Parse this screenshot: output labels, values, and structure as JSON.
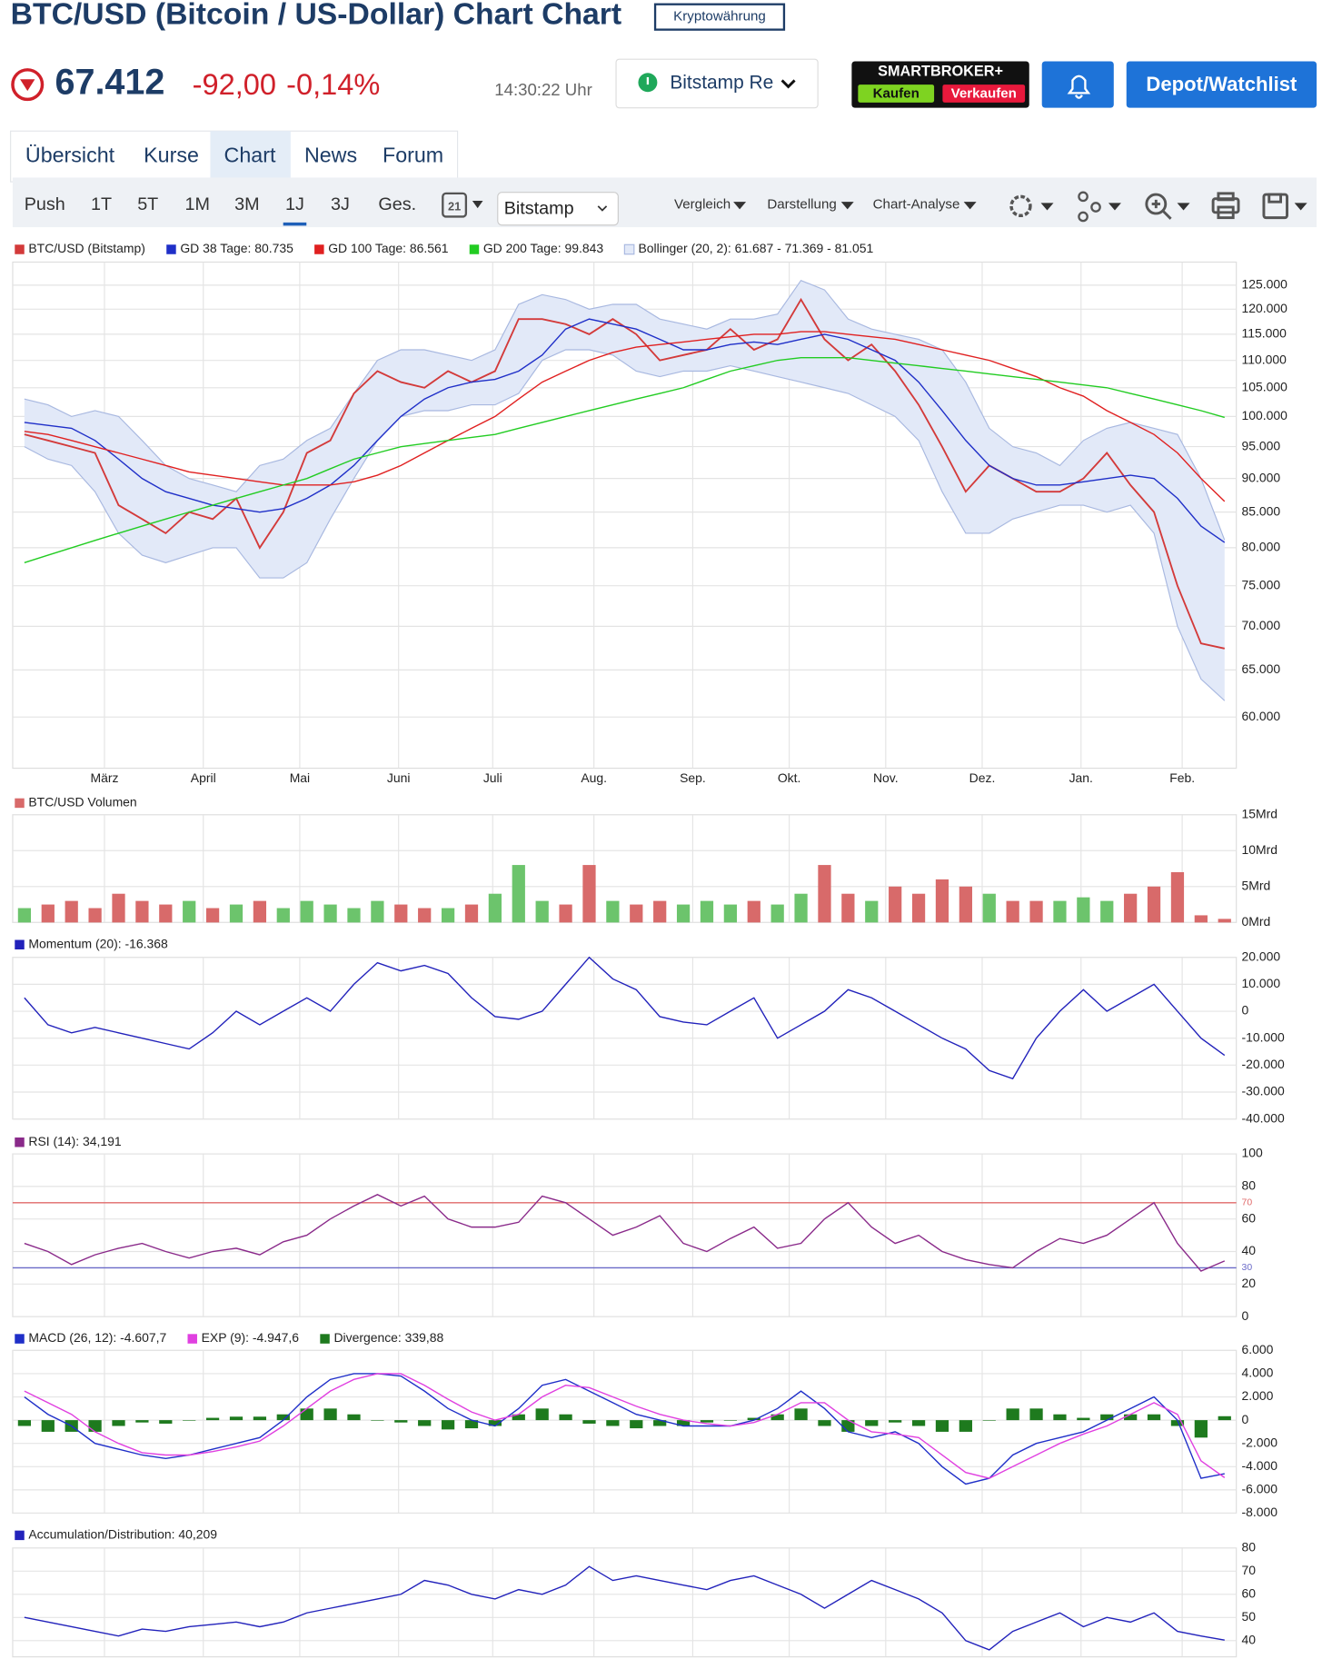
{
  "header": {
    "title": "BTC/USD (Bitcoin / US-Dollar) Chart Chart",
    "badge": "Kryptowährung",
    "price": "67.412",
    "change": "-92,00",
    "change_percent": "-0,14%",
    "time": "14:30:22 Uhr",
    "exchange": "Bitstamp Re",
    "broker": "SMARTBROKER+",
    "buy": "Kaufen",
    "sell": "Verkaufen",
    "watchlist": "Depot/Watchlist"
  },
  "tabs": [
    "Übersicht",
    "Kurse",
    "Chart",
    "News",
    "Forum"
  ],
  "toolbar": {
    "ranges": [
      "Push",
      "1T",
      "5T",
      "1M",
      "3M",
      "1J",
      "3J",
      "Ges."
    ],
    "calendar": "21",
    "exchange": "Bitstamp",
    "menus": [
      "Vergleich",
      "Darstellung",
      "Chart-Analyse"
    ]
  },
  "chart_data": [
    {
      "type": "line",
      "log_scale": true,
      "grid": true,
      "xlim": [
        0,
        52
      ],
      "ylim": [
        55000,
        130000
      ],
      "xticks": [
        {
          "value": 3.9,
          "label": "März"
        },
        {
          "value": 8.1,
          "label": "April"
        },
        {
          "value": 12.2,
          "label": "Mai"
        },
        {
          "value": 16.4,
          "label": "Juni"
        },
        {
          "value": 20.4,
          "label": "Juli"
        },
        {
          "value": 24.7,
          "label": "Aug."
        },
        {
          "value": 28.9,
          "label": "Sep."
        },
        {
          "value": 33.0,
          "label": "Okt."
        },
        {
          "value": 37.1,
          "label": "Nov."
        },
        {
          "value": 41.2,
          "label": "Dez."
        },
        {
          "value": 45.4,
          "label": "Jan."
        },
        {
          "value": 49.7,
          "label": "Feb."
        }
      ],
      "yticks": [
        {
          "value": 60000,
          "label": "60.000"
        },
        {
          "value": 65000,
          "label": "65.000"
        },
        {
          "value": 70000,
          "label": "70.000"
        },
        {
          "value": 75000,
          "label": "75.000"
        },
        {
          "value": 80000,
          "label": "80.000"
        },
        {
          "value": 85000,
          "label": "85.000"
        },
        {
          "value": 90000,
          "label": "90.000"
        },
        {
          "value": 95000,
          "label": "95.000"
        },
        {
          "value": 100000,
          "label": "100.000"
        },
        {
          "value": 105000,
          "label": "105.000"
        },
        {
          "value": 110000,
          "label": "110.000"
        },
        {
          "value": 115000,
          "label": "115.000"
        },
        {
          "value": 120000,
          "label": "120.000"
        },
        {
          "value": 125000,
          "label": "125.000"
        }
      ],
      "series": [
        {
          "name": "BTC/USD (Bitstamp)",
          "color": "#d33a3a",
          "style": "line",
          "values": [
            97000,
            96000,
            95000,
            94000,
            86000,
            84000,
            82000,
            85000,
            84000,
            87000,
            80000,
            85000,
            94000,
            96000,
            104000,
            108000,
            106000,
            105000,
            108000,
            106000,
            108000,
            118000,
            118000,
            117000,
            115000,
            118000,
            115000,
            110000,
            111000,
            112000,
            116000,
            112000,
            114000,
            122000,
            114000,
            110000,
            113000,
            108000,
            102000,
            95000,
            88000,
            92000,
            90000,
            88000,
            88000,
            90000,
            94000,
            89000,
            85000,
            75000,
            68000,
            67412
          ]
        },
        {
          "name": "GD 38 Tage: 80.735",
          "color": "#1f2fc8",
          "style": "line",
          "values": [
            99000,
            98500,
            98000,
            96000,
            93000,
            90000,
            88000,
            87000,
            86000,
            85500,
            85000,
            85500,
            87000,
            89000,
            92000,
            96000,
            100000,
            103000,
            105000,
            106000,
            106500,
            108000,
            111000,
            116000,
            118000,
            117000,
            116000,
            114000,
            112000,
            112000,
            113000,
            113500,
            113000,
            114000,
            115000,
            114000,
            112000,
            110000,
            106000,
            101000,
            96000,
            92000,
            90000,
            89000,
            89000,
            89500,
            90000,
            90500,
            90000,
            87000,
            83000,
            80735
          ]
        },
        {
          "name": "GD 100 Tage: 86.561",
          "color": "#e02020",
          "style": "line",
          "values": [
            97500,
            97000,
            96000,
            95000,
            94000,
            93000,
            92000,
            91000,
            90500,
            90000,
            89500,
            89000,
            89000,
            89000,
            89500,
            90500,
            92000,
            94000,
            96000,
            98000,
            100000,
            103000,
            106000,
            108000,
            110000,
            111500,
            112500,
            113000,
            113500,
            114000,
            114500,
            115000,
            115000,
            115500,
            115500,
            115000,
            114500,
            114000,
            113000,
            112000,
            111000,
            110000,
            108500,
            107000,
            105000,
            103500,
            101000,
            99000,
            97000,
            94000,
            90000,
            86561
          ]
        },
        {
          "name": "GD 200 Tage: 99.843",
          "color": "#22cc22",
          "style": "line",
          "values": [
            78000,
            79000,
            80000,
            81000,
            82000,
            83000,
            84000,
            85000,
            86000,
            87000,
            88000,
            89000,
            90000,
            91500,
            93000,
            94000,
            95000,
            95500,
            96000,
            96500,
            97000,
            98000,
            99000,
            100000,
            101000,
            102000,
            103000,
            104000,
            105000,
            106500,
            108000,
            109000,
            110000,
            110500,
            110500,
            110500,
            110000,
            109500,
            109000,
            108500,
            108000,
            107500,
            107000,
            106500,
            106000,
            105500,
            105000,
            104000,
            103000,
            102000,
            101000,
            99843
          ]
        },
        {
          "name": "Bollinger (20, 2): 61.687 - 71.369 - 81.051",
          "color": "#a8b8e0",
          "fill": "#e2e9f8",
          "style": "band",
          "upper": [
            103000,
            102000,
            100000,
            101000,
            100000,
            96000,
            92000,
            90000,
            89000,
            88000,
            92000,
            93000,
            96000,
            98000,
            104000,
            110000,
            112000,
            112000,
            111000,
            110000,
            112000,
            121000,
            123000,
            122000,
            120000,
            121000,
            121000,
            118000,
            117000,
            116000,
            118000,
            118000,
            119000,
            126000,
            124000,
            118000,
            116000,
            115000,
            114000,
            112000,
            106000,
            98000,
            95000,
            94000,
            92000,
            96000,
            98000,
            99000,
            98000,
            97000,
            90000,
            81051
          ],
          "lower": [
            95000,
            93000,
            92000,
            88000,
            82000,
            79000,
            78000,
            79000,
            80000,
            80000,
            76000,
            76000,
            78000,
            84000,
            90000,
            96000,
            100000,
            101000,
            101000,
            102000,
            102000,
            104000,
            110000,
            112000,
            112000,
            111000,
            108000,
            107000,
            108000,
            108000,
            109000,
            108000,
            107000,
            106000,
            105000,
            104000,
            102000,
            100000,
            96000,
            88000,
            82000,
            82000,
            84000,
            85000,
            86000,
            86000,
            85000,
            86000,
            82000,
            70000,
            64000,
            61687
          ]
        }
      ]
    },
    {
      "type": "bar",
      "grid": true,
      "ylim": [
        0,
        15
      ],
      "yticks": [
        {
          "value": 0,
          "label": "0Mrd"
        },
        {
          "value": 5,
          "label": "5Mrd"
        },
        {
          "value": 10,
          "label": "10Mrd"
        },
        {
          "value": 15,
          "label": "15Mrd"
        }
      ],
      "series": [
        {
          "name": "BTC/USD Volumen",
          "color": "#d86a6a",
          "up_color": "#6cc46c",
          "style": "bar",
          "values": [
            2,
            2.5,
            3,
            2,
            4,
            3,
            2.5,
            3,
            2,
            2.5,
            3,
            2,
            3,
            2.5,
            2,
            3,
            2.5,
            2,
            2,
            2.5,
            4,
            8,
            3,
            2.5,
            8,
            3,
            2.5,
            3,
            2.5,
            3,
            2.5,
            3,
            2.5,
            4,
            8,
            4,
            3,
            5,
            4,
            6,
            5,
            4,
            3,
            3,
            3,
            3.5,
            3,
            4,
            5,
            7,
            1,
            0.5
          ]
        }
      ]
    },
    {
      "type": "line",
      "grid": true,
      "ylim": [
        -40000,
        20000
      ],
      "yticks": [
        {
          "value": -40000,
          "label": "-40.000"
        },
        {
          "value": -30000,
          "label": "-30.000"
        },
        {
          "value": -20000,
          "label": "-20.000"
        },
        {
          "value": -10000,
          "label": "-10.000"
        },
        0,
        {
          "value": 10000,
          "label": "10.000"
        },
        {
          "value": 20000,
          "label": "20.000"
        }
      ],
      "series": [
        {
          "name": "Momentum (20): -16.368",
          "color": "#2222bb",
          "style": "line",
          "values": [
            5000,
            -5000,
            -8000,
            -6000,
            -8000,
            -10000,
            -12000,
            -14000,
            -8000,
            0,
            -5000,
            0,
            5000,
            0,
            10000,
            18000,
            15000,
            17000,
            14000,
            5000,
            -2000,
            -3000,
            0,
            10000,
            20000,
            12000,
            8000,
            -2000,
            -4000,
            -5000,
            0,
            5000,
            -10000,
            -5000,
            0,
            8000,
            5000,
            0,
            -5000,
            -10000,
            -14000,
            -22000,
            -25000,
            -10000,
            0,
            8000,
            0,
            5000,
            10000,
            0,
            -10000,
            -16368
          ]
        }
      ]
    },
    {
      "type": "line",
      "grid": true,
      "ylim": [
        0,
        100
      ],
      "yticks": [
        0,
        20,
        40,
        60,
        80,
        100
      ],
      "levels": [
        70,
        30
      ],
      "level_colors": [
        "#e06a6a",
        "#6a6ac8"
      ],
      "series": [
        {
          "name": "RSI (14): 34,191",
          "color": "#8a2a8a",
          "style": "line",
          "values": [
            45,
            40,
            32,
            38,
            42,
            45,
            40,
            36,
            40,
            42,
            38,
            46,
            50,
            60,
            68,
            75,
            68,
            74,
            60,
            55,
            55,
            58,
            74,
            70,
            60,
            50,
            55,
            62,
            45,
            40,
            48,
            55,
            42,
            45,
            60,
            70,
            55,
            45,
            50,
            40,
            35,
            32,
            30,
            40,
            48,
            45,
            50,
            60,
            70,
            45,
            28,
            34.191
          ]
        }
      ]
    },
    {
      "type": "line",
      "grid": true,
      "ylim": [
        -8000,
        6000
      ],
      "yticks": [
        {
          "value": -8000,
          "label": "-8.000"
        },
        {
          "value": -6000,
          "label": "-6.000"
        },
        {
          "value": -4000,
          "label": "-4.000"
        },
        {
          "value": -2000,
          "label": "-2.000"
        },
        0,
        {
          "value": 2000,
          "label": "2.000"
        },
        {
          "value": 4000,
          "label": "4.000"
        },
        {
          "value": 6000,
          "label": "6.000"
        }
      ],
      "series": [
        {
          "name": "MACD (26, 12): -4.607,7",
          "color": "#1f2fc8",
          "style": "line",
          "values": [
            2000,
            500,
            -500,
            -2000,
            -2500,
            -3000,
            -3300,
            -3000,
            -2500,
            -2000,
            -1500,
            0,
            2000,
            3500,
            4000,
            4000,
            3800,
            2500,
            1000,
            0,
            -500,
            1000,
            3000,
            3500,
            2500,
            1500,
            500,
            0,
            -500,
            -500,
            -500,
            0,
            1000,
            2500,
            1000,
            -1000,
            -1500,
            -1000,
            -2000,
            -4000,
            -5500,
            -5000,
            -3000,
            -2000,
            -1500,
            -1000,
            0,
            1000,
            2000,
            0,
            -5000,
            -4607.7
          ]
        },
        {
          "name": "EXP (9): -4.947,6",
          "color": "#e040e0",
          "style": "line",
          "values": [
            2500,
            1500,
            500,
            -1000,
            -2000,
            -2800,
            -3000,
            -3000,
            -2700,
            -2300,
            -1800,
            -500,
            1000,
            2500,
            3500,
            4000,
            4000,
            3000,
            1800,
            700,
            0,
            500,
            2000,
            3000,
            2800,
            2000,
            1200,
            500,
            0,
            -300,
            -500,
            -200,
            500,
            1500,
            1500,
            0,
            -1000,
            -1200,
            -1500,
            -3000,
            -4500,
            -5000,
            -4000,
            -3000,
            -2000,
            -1200,
            -500,
            500,
            1500,
            500,
            -3500,
            -4947.6
          ]
        },
        {
          "name": "Divergence: 339,88",
          "color": "#1e7a1e",
          "style": "bar",
          "values": [
            -500,
            -1000,
            -1000,
            -1000,
            -500,
            -200,
            -300,
            0,
            200,
            300,
            300,
            500,
            1000,
            1000,
            500,
            0,
            -200,
            -500,
            -800,
            -700,
            -500,
            500,
            1000,
            500,
            -300,
            -500,
            -700,
            -500,
            -500,
            -200,
            0,
            200,
            500,
            1000,
            -500,
            -1000,
            -500,
            -200,
            -500,
            -1000,
            -1000,
            0,
            1000,
            1000,
            500,
            200,
            500,
            500,
            500,
            -500,
            -1500,
            339.88
          ]
        }
      ]
    },
    {
      "type": "line",
      "grid": true,
      "ylim": [
        33,
        80
      ],
      "yticks": [
        40,
        50,
        60,
        70,
        80
      ],
      "series": [
        {
          "name": "Accumulation/Distribution: 40,209",
          "color": "#2222bb",
          "style": "line",
          "values": [
            50,
            48,
            46,
            44,
            42,
            45,
            44,
            46,
            47,
            48,
            46,
            48,
            52,
            54,
            56,
            58,
            60,
            66,
            64,
            60,
            58,
            62,
            60,
            64,
            72,
            66,
            68,
            66,
            64,
            62,
            66,
            68,
            64,
            60,
            54,
            60,
            66,
            62,
            58,
            52,
            40,
            36,
            44,
            48,
            52,
            46,
            50,
            48,
            52,
            44,
            42,
            40.209
          ]
        }
      ]
    }
  ]
}
